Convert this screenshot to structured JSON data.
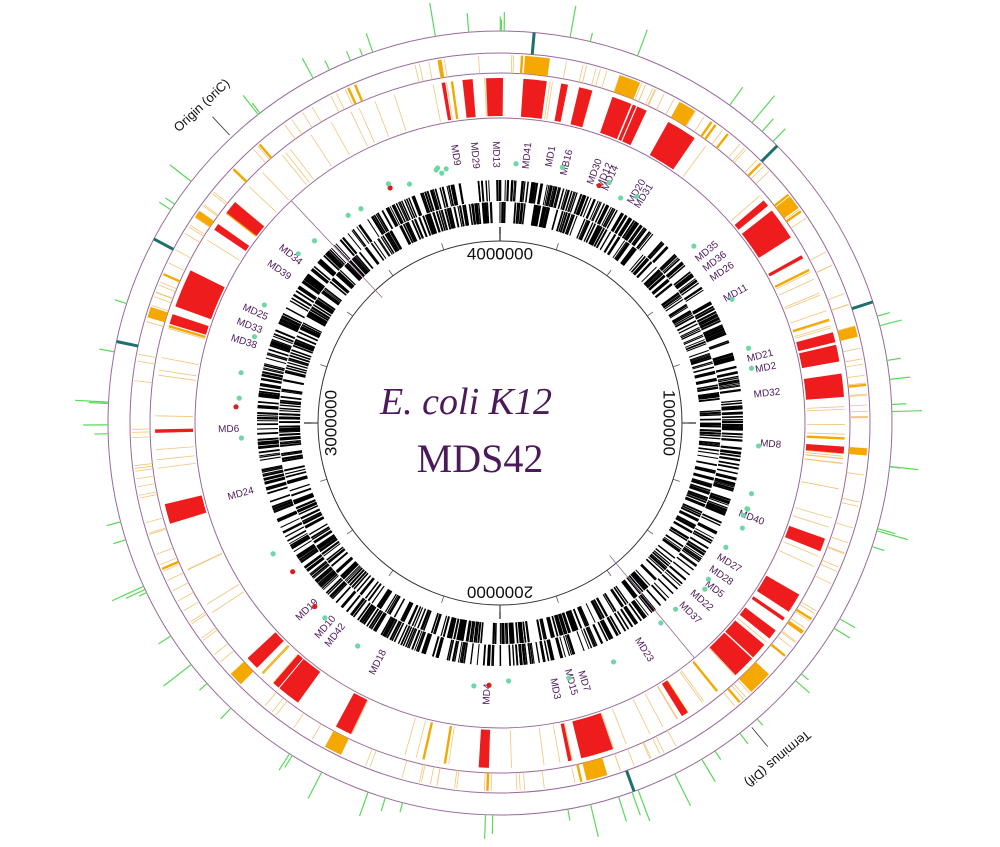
{
  "title": {
    "strain": "E. coli K12",
    "name": "MDS42",
    "color": "#4b1a5a"
  },
  "genome_length": 4000000,
  "scale_ticks": [
    {
      "position": 0,
      "label": "0"
    },
    {
      "position": 1000000,
      "label": "1000000"
    },
    {
      "position": 2000000,
      "label": "2000000"
    },
    {
      "position": 3000000,
      "label": "3000000"
    },
    {
      "position": 4000000,
      "label": "4000000"
    }
  ],
  "markers": [
    {
      "label": "Origin (oriC)",
      "position": 3520000
    },
    {
      "label": "Terminus (Dif)",
      "position": 1560000
    }
  ],
  "deletions": [
    {
      "label": "MD9",
      "position": 3895000
    },
    {
      "label": "MD29",
      "position": 3940000
    },
    {
      "label": "MD13",
      "position": 3990000
    },
    {
      "label": "MD41",
      "position": 65000
    },
    {
      "label": "MD1",
      "position": 120000
    },
    {
      "label": "MB16",
      "position": 160000
    },
    {
      "label": "MD30",
      "position": 230000
    },
    {
      "label": "MD12",
      "position": 255000
    },
    {
      "label": "MD14",
      "position": 270000
    },
    {
      "label": "MD20",
      "position": 340000
    },
    {
      "label": "MD31",
      "position": 360000
    },
    {
      "label": "MD35",
      "position": 560000
    },
    {
      "label": "MD36",
      "position": 590000
    },
    {
      "label": "MD26",
      "position": 620000
    },
    {
      "label": "MD11",
      "position": 680000
    },
    {
      "label": "MD21",
      "position": 840000
    },
    {
      "label": "MD2",
      "position": 870000
    },
    {
      "label": "MD32",
      "position": 930000
    },
    {
      "label": "MD8",
      "position": 1050000
    },
    {
      "label": "MD40",
      "position": 1230000
    },
    {
      "label": "MD27",
      "position": 1350000
    },
    {
      "label": "MD28",
      "position": 1385000
    },
    {
      "label": "MD5",
      "position": 1420000
    },
    {
      "label": "MD22",
      "position": 1460000
    },
    {
      "label": "MD37",
      "position": 1500000
    },
    {
      "label": "MD23",
      "position": 1640000
    },
    {
      "label": "MD7",
      "position": 1800000
    },
    {
      "label": "MD15",
      "position": 1830000
    },
    {
      "label": "MD3",
      "position": 1870000
    },
    {
      "label": "MD4",
      "position": 2030000
    },
    {
      "label": "MD18",
      "position": 2300000
    },
    {
      "label": "MD42",
      "position": 2420000
    },
    {
      "label": "MD10",
      "position": 2450000
    },
    {
      "label": "MD19",
      "position": 2510000
    },
    {
      "label": "MD24",
      "position": 2830000
    },
    {
      "label": "MD6",
      "position": 2985000
    },
    {
      "label": "MD38",
      "position": 3195000
    },
    {
      "label": "MD33",
      "position": 3235000
    },
    {
      "label": "MD25",
      "position": 3270000
    },
    {
      "label": "MD39",
      "position": 3385000
    },
    {
      "label": "MD34",
      "position": 3430000
    }
  ],
  "colors": {
    "deletion": "#ee1c1c",
    "mobile_element": "#f5a800",
    "mobile_element_thin": "#f3c47a",
    "green_ticks": "#5ad85a",
    "teal_ticks": "#1f6f6f",
    "cyan_markers": "#6ed7a6",
    "red_markers": "#d62020",
    "ring_line": "#9a6a9a",
    "genes": "#000000"
  }
}
